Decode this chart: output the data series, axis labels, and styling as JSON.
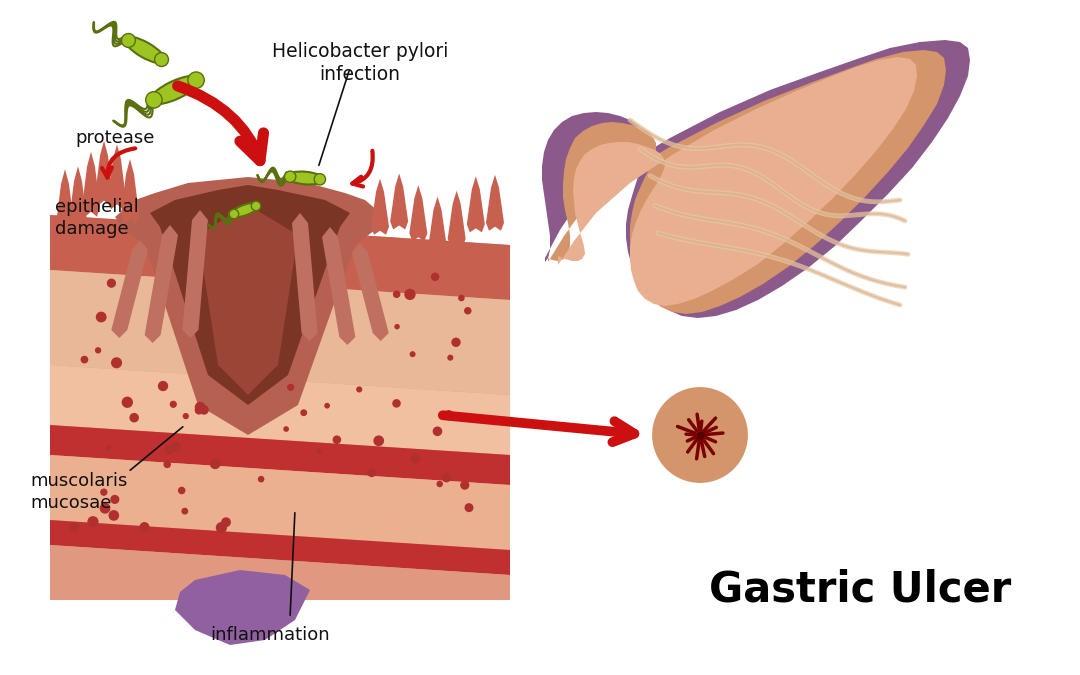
{
  "background_color": "#ffffff",
  "gastric_ulcer_text": "Gastric Ulcer",
  "gastric_ulcer_fontsize": 30,
  "labels": {
    "helicobacter": "Helicobacter pylori\ninfection",
    "protease": "protease",
    "epithelial": "epithelial\ndamage",
    "muscolaris": "muscolaris\nmucosae",
    "inflammation": "inflammation"
  },
  "label_fontsize": 13,
  "stomach_purple": "#8B5A8B",
  "stomach_inner_peach": "#D4956A",
  "stomach_light_inner": "#E8B090",
  "bacteria_fill": "#9DC420",
  "bacteria_edge": "#5A7010",
  "arrow_red": "#CC1010",
  "layer_colors": {
    "mucosa_top": "#C86050",
    "submucosa": "#E8B898",
    "muscularis_mucosae_pink": "#F0C0A0",
    "red_band": "#C03030",
    "light_band": "#EAB090",
    "outer_salmon": "#E09880"
  },
  "crater_outer": "#A85545",
  "crater_inner": "#7A3525",
  "annotation_color": "#111111"
}
